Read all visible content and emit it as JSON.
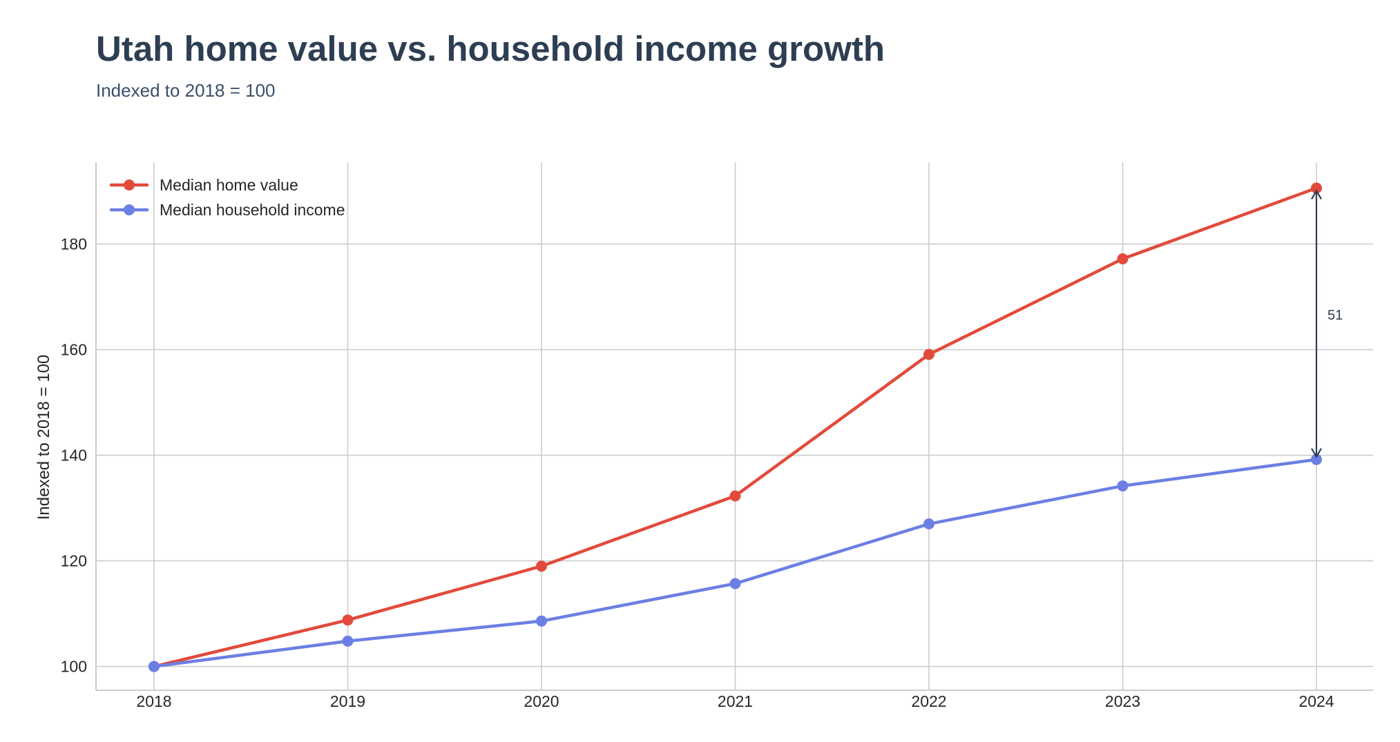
{
  "chart_data": {
    "type": "line",
    "title": "Utah home value vs. household income growth",
    "subtitle": "Indexed to 2018 = 100",
    "xlabel": "",
    "ylabel": "Indexed to 2018 = 100",
    "x": [
      "2018",
      "2019",
      "2020",
      "2021",
      "2022",
      "2023",
      "2024"
    ],
    "ylim": [
      95.5,
      195.5
    ],
    "yticks": [
      100,
      120,
      140,
      160,
      180
    ],
    "grid": true,
    "legend_position": "top-left",
    "series": [
      {
        "name": "Median home value",
        "color": "#e24a3b",
        "values": [
          100,
          108.8,
          119.0,
          132.3,
          159.1,
          177.2,
          190.6
        ]
      },
      {
        "name": "Median household income",
        "color": "#6b7fe3",
        "values": [
          100,
          104.8,
          108.6,
          115.7,
          127.0,
          134.2,
          139.2
        ]
      }
    ],
    "annotations": [
      {
        "type": "double-arrow",
        "x": "2024",
        "from": 139.2,
        "to": 190.6,
        "label": "51",
        "color": "#2e3e52"
      }
    ]
  }
}
